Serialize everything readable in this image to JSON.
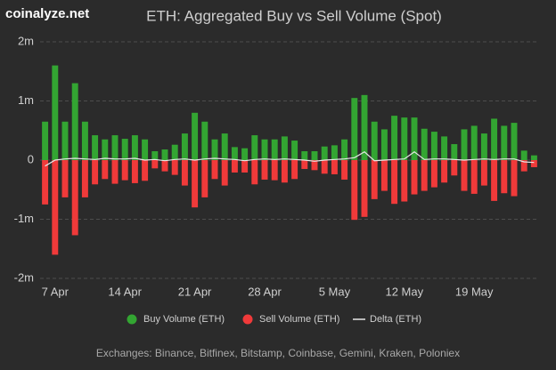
{
  "chart_data": {
    "type": "bar",
    "watermark": "coinalyze.net",
    "title": "ETH: Aggregated Buy vs Sell Volume (Spot)",
    "note": "Exchanges: Binance, Bitfinex, Bitstamp, Coinbase, Gemini, Kraken, Poloniex",
    "categories": [
      null,
      "7 Apr",
      null,
      null,
      null,
      null,
      null,
      null,
      "14 Apr",
      null,
      null,
      null,
      null,
      null,
      null,
      "21 Apr",
      null,
      null,
      null,
      null,
      null,
      null,
      "28 Apr",
      null,
      null,
      null,
      null,
      null,
      null,
      "5 May",
      null,
      null,
      null,
      null,
      null,
      null,
      "12 May",
      null,
      null,
      null,
      null,
      null,
      null,
      "19 May",
      null,
      null,
      null,
      null,
      null,
      null
    ],
    "series": [
      {
        "name": "Buy Volume (ETH)",
        "color": "#33a532",
        "kind": "bar",
        "values": [
          650000,
          1600000,
          650000,
          1300000,
          650000,
          420000,
          350000,
          420000,
          360000,
          420000,
          350000,
          150000,
          180000,
          260000,
          450000,
          800000,
          650000,
          350000,
          450000,
          220000,
          200000,
          420000,
          350000,
          350000,
          400000,
          330000,
          150000,
          150000,
          230000,
          250000,
          350000,
          1050000,
          1100000,
          650000,
          520000,
          750000,
          720000,
          720000,
          530000,
          480000,
          400000,
          270000,
          520000,
          580000,
          450000,
          700000,
          580000,
          630000,
          160000,
          80000
        ]
      },
      {
        "name": "Sell Volume (ETH)",
        "color": "#f03a3a",
        "kind": "bar",
        "values": [
          -750000,
          -1600000,
          -630000,
          -1270000,
          -630000,
          -410000,
          -320000,
          -400000,
          -340000,
          -390000,
          -350000,
          -140000,
          -190000,
          -250000,
          -430000,
          -800000,
          -630000,
          -320000,
          -430000,
          -210000,
          -210000,
          -410000,
          -330000,
          -340000,
          -380000,
          -320000,
          -150000,
          -170000,
          -230000,
          -240000,
          -330000,
          -1010000,
          -960000,
          -660000,
          -520000,
          -740000,
          -700000,
          -580000,
          -520000,
          -460000,
          -380000,
          -260000,
          -520000,
          -570000,
          -430000,
          -690000,
          -560000,
          -610000,
          -190000,
          -120000
        ]
      },
      {
        "name": "Delta (ETH)",
        "color": "#e8e8e8",
        "kind": "line",
        "values": [
          -100000,
          0,
          20000,
          30000,
          20000,
          10000,
          30000,
          20000,
          20000,
          30000,
          0,
          10000,
          -10000,
          10000,
          20000,
          0,
          20000,
          30000,
          20000,
          10000,
          -10000,
          10000,
          20000,
          10000,
          20000,
          10000,
          0,
          -20000,
          0,
          10000,
          20000,
          40000,
          140000,
          -10000,
          0,
          10000,
          20000,
          140000,
          10000,
          20000,
          20000,
          10000,
          0,
          10000,
          20000,
          10000,
          20000,
          20000,
          -30000,
          -40000
        ]
      }
    ],
    "ylim": [
      -2000000,
      2000000
    ],
    "yticks": [
      {
        "value": 2000000,
        "label": "2m"
      },
      {
        "value": 1000000,
        "label": "1m"
      },
      0,
      {
        "value": -1000000,
        "label": "-1m"
      },
      {
        "value": -2000000,
        "label": "-2m"
      }
    ],
    "grid": true
  }
}
